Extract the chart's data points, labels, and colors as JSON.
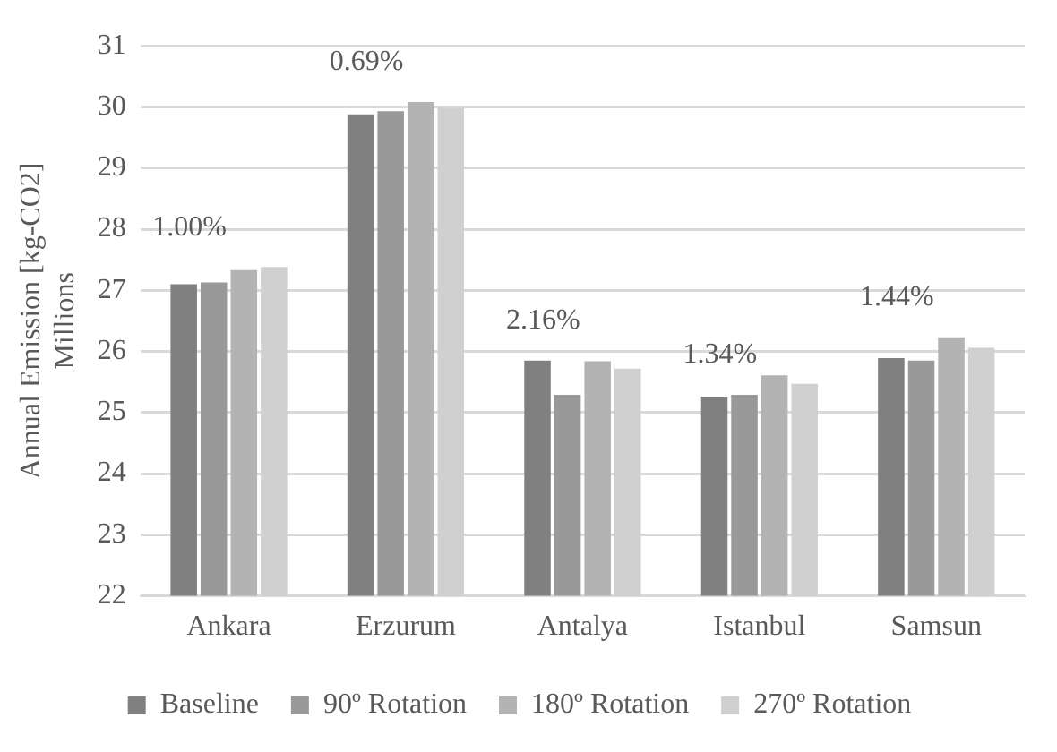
{
  "chart_data": {
    "type": "bar",
    "ylabel": "Annual Emission [kg-CO2]\nMillions",
    "categories": [
      "Ankara",
      "Erzurum",
      "Antalya",
      "Istanbul",
      "Samsun"
    ],
    "series": [
      {
        "name": "Baseline",
        "color": "#808080",
        "values": [
          27.1,
          29.88,
          25.85,
          25.26,
          25.89
        ]
      },
      {
        "name": "90º Rotation",
        "color": "#999999",
        "values": [
          27.13,
          29.93,
          25.29,
          25.29,
          25.85
        ]
      },
      {
        "name": "180º Rotation",
        "color": "#b3b3b3",
        "values": [
          27.33,
          30.08,
          25.84,
          25.61,
          26.23
        ]
      },
      {
        "name": "270º Rotation",
        "color": "#d0d0d0",
        "values": [
          27.38,
          29.98,
          25.72,
          25.47,
          26.06
        ]
      }
    ],
    "annotations": [
      {
        "text": "1.00%",
        "x": "Ankara",
        "y": 27.38
      },
      {
        "text": "0.69%",
        "x": "Erzurum",
        "y": 30.08
      },
      {
        "text": "2.16%",
        "x": "Antalya",
        "y": 25.85
      },
      {
        "text": "1.34%",
        "x": "Istanbul",
        "y": 25.29
      },
      {
        "text": "1.44%",
        "x": "Samsun",
        "y": 26.23
      }
    ],
    "ylim": [
      22,
      31
    ],
    "yticks": [
      22,
      23,
      24,
      25,
      26,
      27,
      28,
      29,
      30,
      31
    ],
    "grid": "y",
    "legend": "bottom"
  }
}
